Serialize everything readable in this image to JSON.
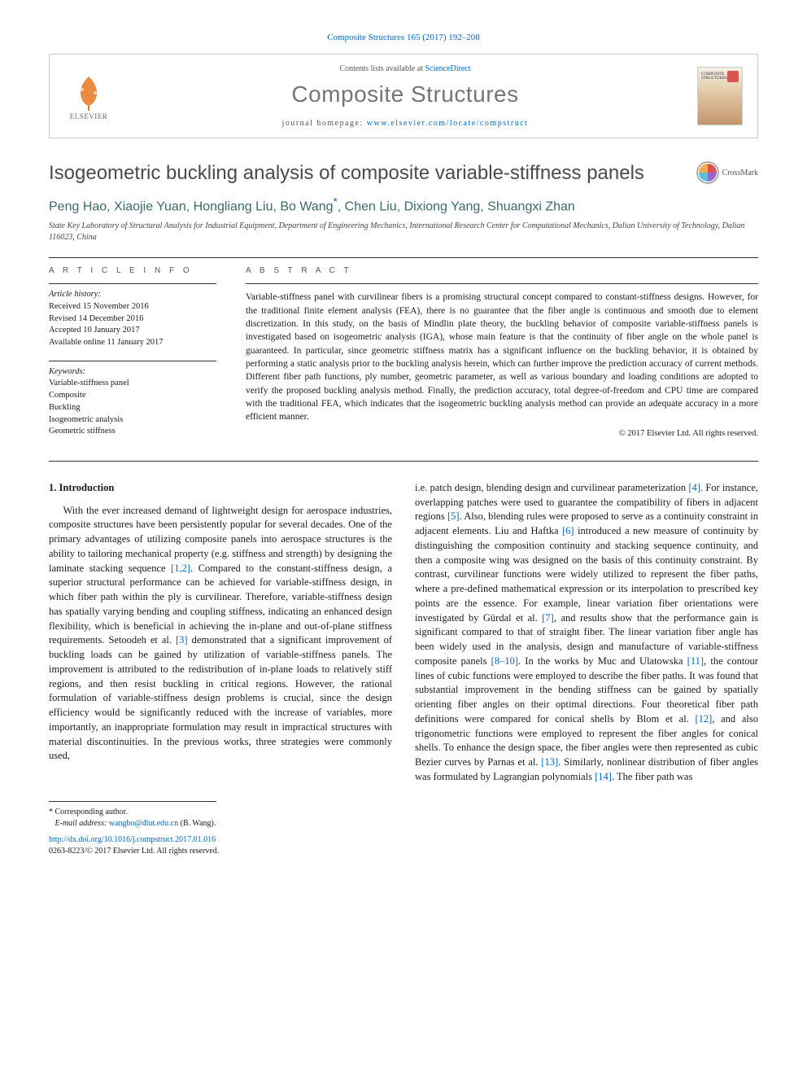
{
  "citation_line": "Composite Structures 165 (2017) 192–208",
  "header": {
    "contents_prefix": "Contents lists available at ",
    "contents_link": "ScienceDirect",
    "journal_title": "Composite Structures",
    "homepage_prefix": "journal homepage: ",
    "homepage_url": "www.elsevier.com/locate/compstruct",
    "publisher": "ELSEVIER",
    "cover_label": "COMPOSITE STRUCTURES"
  },
  "article": {
    "title": "Isogeometric buckling analysis of composite variable-stiffness panels",
    "crossmark_label": "CrossMark",
    "authors_html": "Peng Hao, Xiaojie Yuan, Hongliang Liu, Bo Wang",
    "corr_marker": "*",
    "authors_tail": ", Chen Liu, Dixiong Yang, Shuangxi Zhan",
    "affiliation": "State Key Laboratory of Structural Analysis for Industrial Equipment, Department of Engineering Mechanics, International Research Center for Computational Mechanics, Dalian University of Technology, Dalian 116023, China"
  },
  "info": {
    "head": "A R T I C L E   I N F O",
    "history_label": "Article history:",
    "received": "Received 15 November 2016",
    "revised": "Revised 14 December 2016",
    "accepted": "Accepted 10 January 2017",
    "online": "Available online 11 January 2017",
    "keywords_label": "Keywords:",
    "kw1": "Variable-stiffness panel",
    "kw2": "Composite",
    "kw3": "Buckling",
    "kw4": "Isogeometric analysis",
    "kw5": "Geometric stiffness"
  },
  "abstract": {
    "head": "A B S T R A C T",
    "text": "Variable-stiffness panel with curvilinear fibers is a promising structural concept compared to constant-stiffness designs. However, for the traditional finite element analysis (FEA), there is no guarantee that the fiber angle is continuous and smooth due to element discretization. In this study, on the basis of Mindlin plate theory, the buckling behavior of composite variable-stiffness panels is investigated based on isogeometric analysis (IGA), whose main feature is that the continuity of fiber angle on the whole panel is guaranteed. In particular, since geometric stiffness matrix has a significant influence on the buckling behavior, it is obtained by performing a static analysis prior to the buckling analysis herein, which can further improve the prediction accuracy of current methods. Different fiber path functions, ply number, geometric parameter, as well as various boundary and loading conditions are adopted to verify the proposed buckling analysis method. Finally, the prediction accuracy, total degree-of-freedom and CPU time are compared with the traditional FEA, which indicates that the isogeometric buckling analysis method can provide an adequate accuracy in a more efficient manner.",
    "copyright": "© 2017 Elsevier Ltd. All rights reserved."
  },
  "body": {
    "section_heading": "1. Introduction",
    "col1": "With the ever increased demand of lightweight design for aerospace industries, composite structures have been persistently popular for several decades. One of the primary advantages of utilizing composite panels into aerospace structures is the ability to tailoring mechanical property (e.g. stiffness and strength) by designing the laminate stacking sequence [1,2]. Compared to the constant-stiffness design, a superior structural performance can be achieved for variable-stiffness design, in which fiber path within the ply is curvilinear. Therefore, variable-stiffness design has spatially varying bending and coupling stiffness, indicating an enhanced design flexibility, which is beneficial in achieving the in-plane and out-of-plane stiffness requirements. Setoodeh et al. [3] demonstrated that a significant improvement of buckling loads can be gained by utilization of variable-stiffness panels. The improvement is attributed to the redistribution of in-plane loads to relatively stiff regions, and then resist buckling in critical regions. However, the rational formulation of variable-stiffness design problems is crucial, since the design efficiency would be significantly reduced with the increase of variables, more importantly, an inappropriate formulation may result in impractical structures with material discontinuities. In the previous works, three strategies were commonly used,",
    "col2": "i.e. patch design, blending design and curvilinear parameterization [4]. For instance, overlapping patches were used to guarantee the compatibility of fibers in adjacent regions [5]. Also, blending rules were proposed to serve as a continuity constraint in adjacent elements. Liu and Haftka [6] introduced a new measure of continuity by distinguishing the composition continuity and stacking sequence continuity, and then a composite wing was designed on the basis of this continuity constraint. By contrast, curvilinear functions were widely utilized to represent the fiber paths, where a pre-defined mathematical expression or its interpolation to prescribed key points are the essence. For example, linear variation fiber orientations were investigated by Gürdal et al. [7], and results show that the performance gain is significant compared to that of straight fiber. The linear variation fiber angle has been widely used in the analysis, design and manufacture of variable-stiffness composite panels [8–10]. In the works by Muc and Ulatowska [11], the contour lines of cubic functions were employed to describe the fiber paths. It was found that substantial improvement in the bending stiffness can be gained by spatially orienting fiber angles on their optimal directions. Four theoretical fiber path definitions were compared for conical shells by Blom et al. [12], and also trigonometric functions were employed to represent the fiber angles for conical shells. To enhance the design space, the fiber angles were then represented as cubic Bezier curves by Parnas et al. [13]. Similarly, nonlinear distribution of fiber angles was formulated by Lagrangian polynomials [14]. The fiber path was"
  },
  "footnotes": {
    "corr_label": "* Corresponding author.",
    "email_label": "E-mail address: ",
    "email": "wangbo@dlut.edu.cn",
    "email_who": " (B. Wang).",
    "doi": "http://dx.doi.org/10.1016/j.compstruct.2017.01.016",
    "issn_line": "0263-8223/© 2017 Elsevier Ltd. All rights reserved."
  },
  "colors": {
    "link": "#0066cc",
    "heading_grey": "#4a4a4a",
    "author_teal": "#3a6a6a"
  }
}
